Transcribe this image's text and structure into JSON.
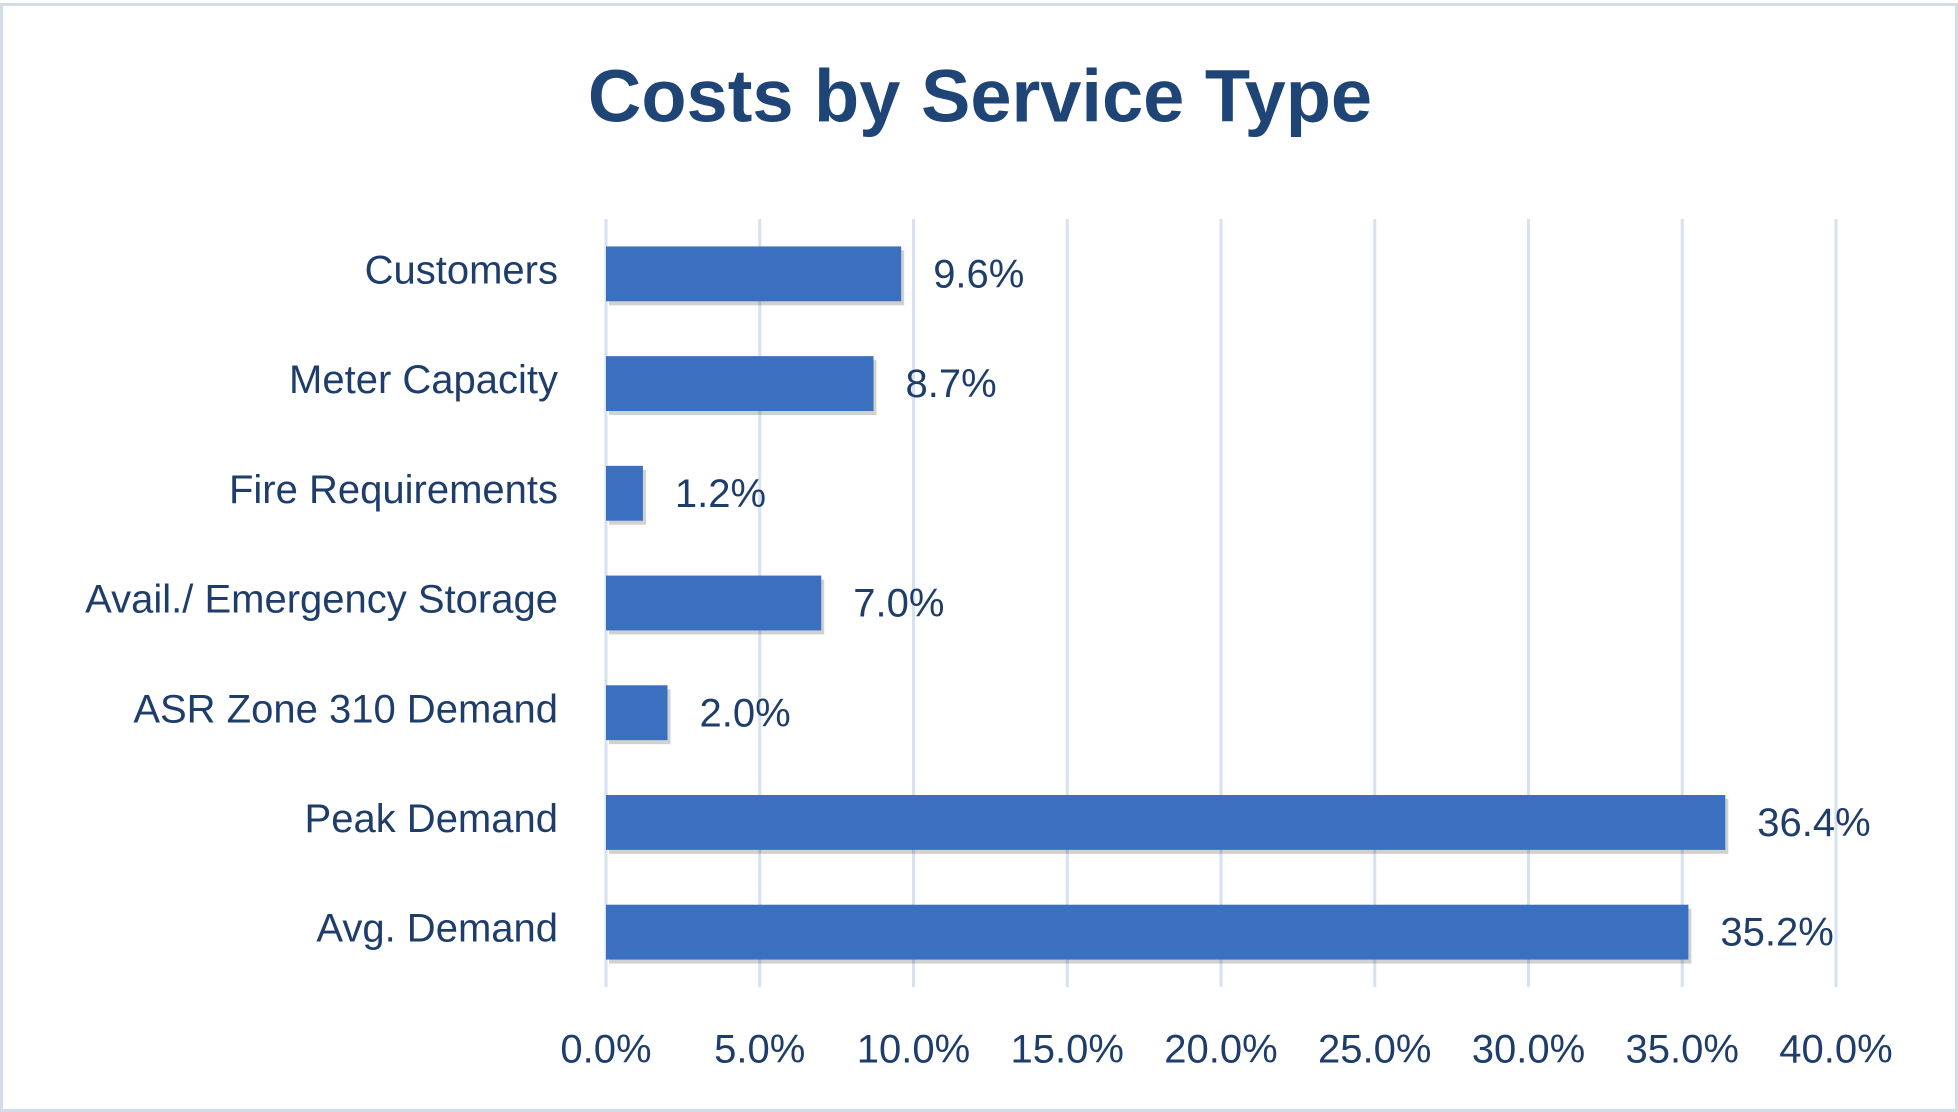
{
  "chart_data": {
    "type": "bar",
    "orientation": "horizontal",
    "title": "Costs by Service Type",
    "categories": [
      "Customers",
      "Meter Capacity",
      "Fire Requirements",
      "Avail./ Emergency Storage",
      "ASR Zone 310 Demand",
      "Peak Demand",
      "Avg. Demand"
    ],
    "values": [
      9.6,
      8.7,
      1.2,
      7.0,
      2.0,
      36.4,
      35.2
    ],
    "value_labels": [
      "9.6%",
      "8.7%",
      "1.2%",
      "7.0%",
      "2.0%",
      "36.4%",
      "35.2%"
    ],
    "color": "#3a70bf",
    "xlim": [
      0,
      40
    ],
    "xticks": [
      {
        "value": 0,
        "label": "0.0%"
      },
      {
        "value": 5,
        "label": "5.0%"
      },
      {
        "value": 10,
        "label": "10.0%"
      },
      {
        "value": 15,
        "label": "15.0%"
      },
      {
        "value": 20,
        "label": "20.0%"
      },
      {
        "value": 25,
        "label": "25.0%"
      },
      {
        "value": 30,
        "label": "30.0%"
      },
      {
        "value": 35,
        "label": "35.0%"
      },
      {
        "value": 40,
        "label": "40.0%"
      }
    ],
    "grid": true
  }
}
